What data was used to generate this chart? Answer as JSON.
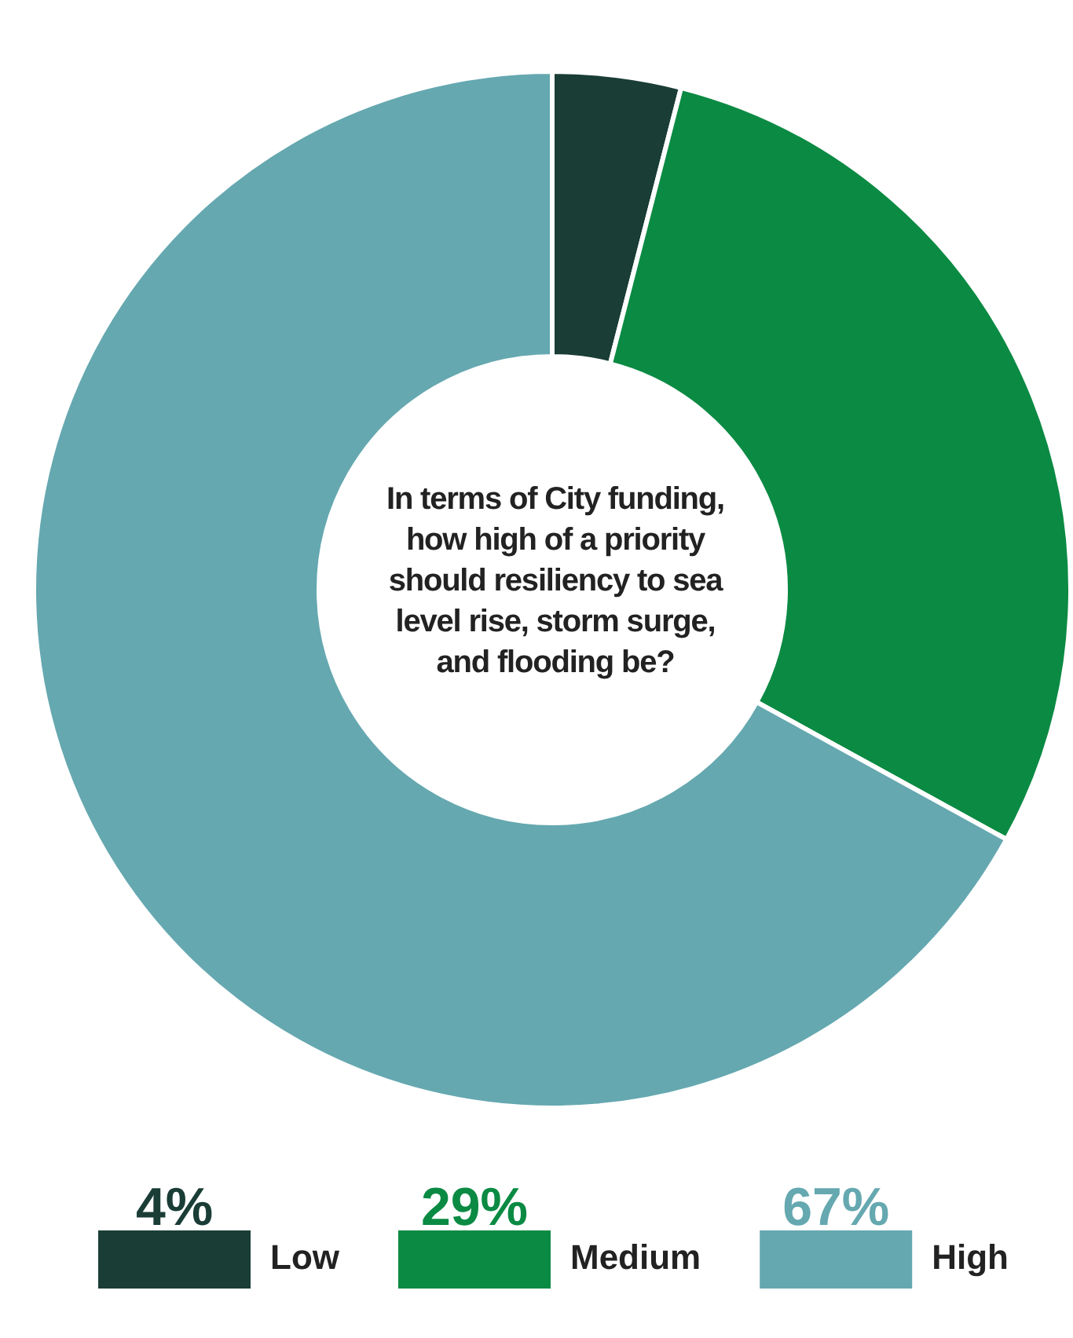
{
  "chart_data": {
    "type": "donut",
    "title": "In terms of City funding, how high of a priority should resiliency to sea level rise, storm surge, and flooding be?",
    "categories": [
      "Low",
      "Medium",
      "High"
    ],
    "values": [
      4,
      29,
      67
    ],
    "value_labels": [
      "4%",
      "29%",
      "67%"
    ],
    "colors": [
      "#1a3d36",
      "#0b8a43",
      "#65a8b0"
    ],
    "legend": "bottom"
  }
}
